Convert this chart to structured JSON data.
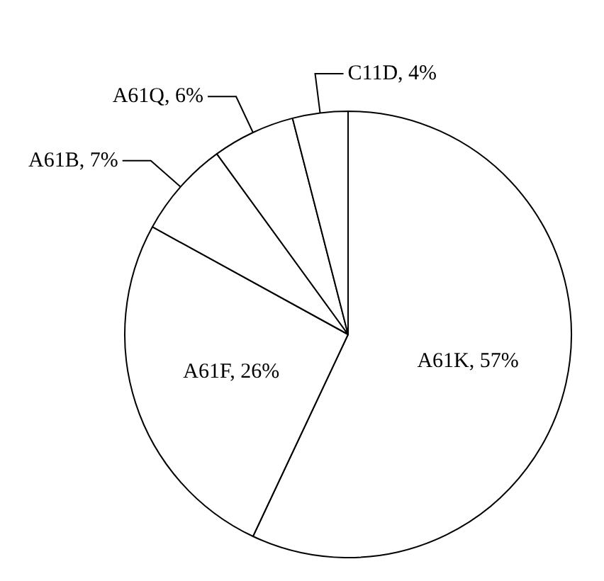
{
  "chart_data": {
    "type": "pie",
    "categories": [
      "A61K",
      "A61F",
      "A61B",
      "A61Q",
      "C11D"
    ],
    "values": [
      57,
      26,
      7,
      6,
      4
    ],
    "colors": [
      "#ffffff",
      "#ffffff",
      "#ffffff",
      "#ffffff",
      "#ffffff"
    ],
    "value_labels": [
      "57%",
      "26%",
      "7%",
      "6%",
      "4%"
    ],
    "legend": false
  }
}
